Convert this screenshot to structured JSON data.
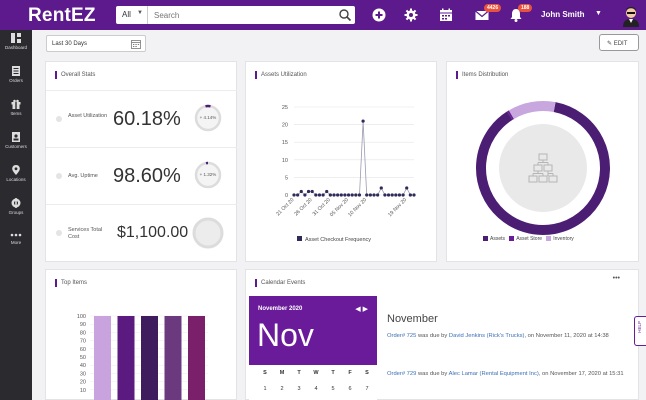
{
  "app": {
    "name": "RentEZ"
  },
  "header": {
    "search_scope": "All",
    "search_placeholder": "Search",
    "mail_badge": "4426",
    "notifications_badge": "188",
    "user_name": "John Smith"
  },
  "sidebar": {
    "items": [
      {
        "label": "Dashboard",
        "icon": "dashboard-icon"
      },
      {
        "label": "Orders",
        "icon": "orders-icon"
      },
      {
        "label": "Items",
        "icon": "gift-icon"
      },
      {
        "label": "Customers",
        "icon": "customers-icon"
      },
      {
        "label": "Locations",
        "icon": "location-pin-icon"
      },
      {
        "label": "Groups",
        "icon": "groups-icon"
      },
      {
        "label": "More",
        "icon": "more-dots-icon"
      }
    ]
  },
  "toolbar": {
    "date_range": "Last 30 Days",
    "edit_label": "EDIT"
  },
  "overall": {
    "title": "Overall Stats",
    "stats": [
      {
        "label": "Asset Utilization",
        "value": "60.18%",
        "change": "+ 4.14%"
      },
      {
        "label": "Avg. Uptime",
        "value": "98.60%",
        "change": "+ 1.32%"
      },
      {
        "label": "Services Total Cost",
        "value": "$1,100.00",
        "change": ""
      }
    ]
  },
  "utilization": {
    "title": "Assets Utilization"
  },
  "distribution": {
    "title": "Items Distribution"
  },
  "top_items": {
    "title": "Top Items"
  },
  "calendar": {
    "title": "Calendar Events",
    "menu_label": "•••",
    "month_year": "November 2020",
    "month_short": "Nov",
    "weekdays": [
      "S",
      "M",
      "T",
      "W",
      "T",
      "F",
      "S"
    ],
    "first_week": [
      "1",
      "2",
      "3",
      "4",
      "5",
      "6",
      "7"
    ],
    "events_heading": "November",
    "events": [
      {
        "order_label": "Order#",
        "order_no": "725",
        "pre": "was due by",
        "name": "David Jenkins (Rick's Trucks)",
        "post": ", on November 11, 2020 at 14:38"
      },
      {
        "order_label": "Order#",
        "order_no": "729",
        "pre": "was due by",
        "name": "Alec Lamar (Rental Equipment Inc)",
        "post": ", on November 17, 2020 at 15:31"
      }
    ],
    "help_tab": "HELP"
  },
  "colors": {
    "brand": "#5c1a8c",
    "sidebar": "#2b2b2f",
    "assets": "#4b1e73",
    "asset_store": "#6a1b9a",
    "inventory": "#c8a6de"
  },
  "chart_data": [
    {
      "type": "line",
      "title": "",
      "x": [
        "21 Oct 20",
        "",
        "",
        "",
        "",
        "26 Oct 20",
        "",
        "",
        "",
        "",
        "31 Oct 20",
        "",
        "",
        "",
        "",
        "05 Nov 20",
        "",
        "",
        "",
        "",
        "10 Nov 20",
        "",
        "",
        "",
        "",
        "",
        "",
        "",
        "",
        "",
        "",
        "19 Nov 20",
        "",
        ""
      ],
      "series": [
        {
          "name": "Asset Checkout Frequency",
          "values": [
            0,
            0,
            1,
            0,
            1,
            1,
            0,
            0,
            0,
            1,
            0,
            0,
            0,
            0,
            0,
            0,
            0,
            0,
            0,
            21,
            0,
            0,
            0,
            0,
            2,
            0,
            0,
            0,
            0,
            0,
            0,
            2,
            0,
            0
          ]
        }
      ],
      "ylim": [
        0,
        25
      ],
      "yticks": [
        0,
        5,
        10,
        15,
        20,
        25
      ],
      "grid": true,
      "legend": "bottom"
    },
    {
      "type": "pie",
      "labels": [
        "Assets",
        "Asset Store",
        "Inventory"
      ],
      "values": [
        88,
        0.5,
        11.5
      ],
      "legend": "bottom"
    },
    {
      "type": "bar",
      "categories": [
        "",
        "",
        "",
        "",
        ""
      ],
      "values": [
        100,
        100,
        100,
        100,
        100
      ],
      "yticks": [
        10,
        20,
        30,
        40,
        50,
        60,
        70,
        80,
        90,
        100
      ],
      "ylim": [
        0,
        100
      ]
    }
  ]
}
